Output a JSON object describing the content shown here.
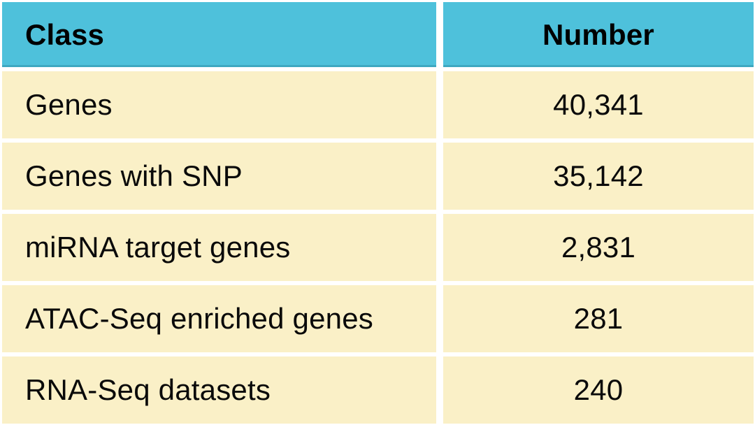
{
  "table": {
    "headers": {
      "class": "Class",
      "number": "Number"
    },
    "rows": [
      {
        "label": "Genes",
        "value": "40,341"
      },
      {
        "label": "Genes with SNP",
        "value": "35,142"
      },
      {
        "label": "miRNA target genes",
        "value": "2,831"
      },
      {
        "label": "ATAC-Seq enriched genes",
        "value": "281"
      },
      {
        "label": "RNA-Seq datasets",
        "value": "240"
      }
    ],
    "colors": {
      "header_bg": "#4EC1DB",
      "row_bg": "#FAF0C7",
      "gutter": "#FFFFFF",
      "text": "#000000"
    }
  },
  "chart_data": {
    "type": "table",
    "title": "",
    "columns": [
      "Class",
      "Number"
    ],
    "rows": [
      [
        "Genes",
        40341
      ],
      [
        "Genes with SNP",
        35142
      ],
      [
        "miRNA target genes",
        2831
      ],
      [
        "ATAC-Seq enriched genes",
        281
      ],
      [
        "RNA-Seq datasets",
        240
      ]
    ],
    "layout_hints": {
      "header_style": "bold black text on cyan background",
      "body_style": "black text on pale yellow background",
      "column_alignment": [
        "left",
        "center"
      ],
      "grid": "white gutters between all cells"
    }
  }
}
